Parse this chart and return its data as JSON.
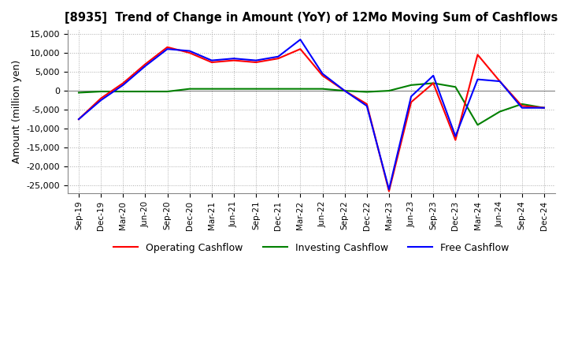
{
  "title": "[8935]  Trend of Change in Amount (YoY) of 12Mo Moving Sum of Cashflows",
  "ylabel": "Amount (million yen)",
  "ylim": [
    -27000,
    16000
  ],
  "yticks": [
    -25000,
    -20000,
    -15000,
    -10000,
    -5000,
    0,
    5000,
    10000,
    15000
  ],
  "x_labels": [
    "Sep-19",
    "Dec-19",
    "Mar-20",
    "Jun-20",
    "Sep-20",
    "Dec-20",
    "Mar-21",
    "Jun-21",
    "Sep-21",
    "Dec-21",
    "Mar-22",
    "Jun-22",
    "Sep-22",
    "Dec-22",
    "Mar-23",
    "Jun-23",
    "Sep-23",
    "Dec-23",
    "Mar-24",
    "Jun-24",
    "Sep-24",
    "Dec-24"
  ],
  "operating": [
    -7500,
    -2000,
    2000,
    7000,
    11500,
    10000,
    7500,
    8000,
    7500,
    8500,
    11000,
    4000,
    0,
    -3500,
    -26500,
    -3000,
    2000,
    -13000,
    9500,
    2500,
    -4000,
    -4500
  ],
  "investing": [
    -500,
    -200,
    -200,
    -200,
    -200,
    500,
    500,
    500,
    500,
    500,
    500,
    500,
    0,
    -300,
    0,
    1500,
    2000,
    1000,
    -9000,
    -5500,
    -3500,
    -4500
  ],
  "free": [
    -7500,
    -2500,
    1500,
    6500,
    11000,
    10500,
    8000,
    8500,
    8000,
    9000,
    13500,
    4500,
    0,
    -4000,
    -26000,
    -1500,
    4000,
    -12000,
    3000,
    2500,
    -4500,
    -4500
  ],
  "operating_color": "#ff0000",
  "investing_color": "#008000",
  "free_color": "#0000ff",
  "background_color": "#ffffff",
  "grid_color": "#aaaaaa"
}
